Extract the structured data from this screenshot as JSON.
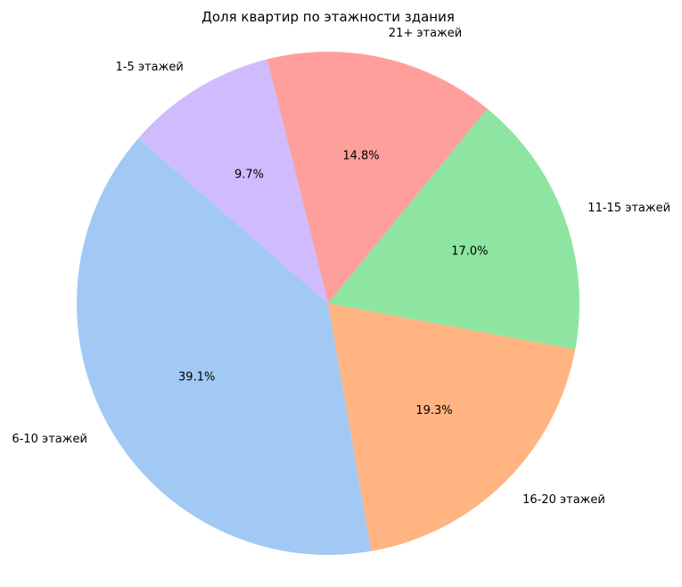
{
  "chart_data": {
    "type": "pie",
    "title": "Доля квартир по этажности здания",
    "slices": [
      {
        "label": "6-10 этажей",
        "value": 39.1,
        "pct_label": "39.1%",
        "color": "#a1c9f4"
      },
      {
        "label": "16-20 этажей",
        "value": 19.3,
        "pct_label": "19.3%",
        "color": "#ffb482"
      },
      {
        "label": "11-15 этажей",
        "value": 17.0,
        "pct_label": "17.0%",
        "color": "#8de5a1"
      },
      {
        "label": "21+ этажей",
        "value": 14.8,
        "pct_label": "14.8%",
        "color": "#ff9f9b"
      },
      {
        "label": "1-5 этажей",
        "value": 9.7,
        "pct_label": "9.7%",
        "color": "#d0bbff"
      }
    ],
    "start_angle_deg": 139,
    "direction": "counterclockwise",
    "legend": "none"
  }
}
